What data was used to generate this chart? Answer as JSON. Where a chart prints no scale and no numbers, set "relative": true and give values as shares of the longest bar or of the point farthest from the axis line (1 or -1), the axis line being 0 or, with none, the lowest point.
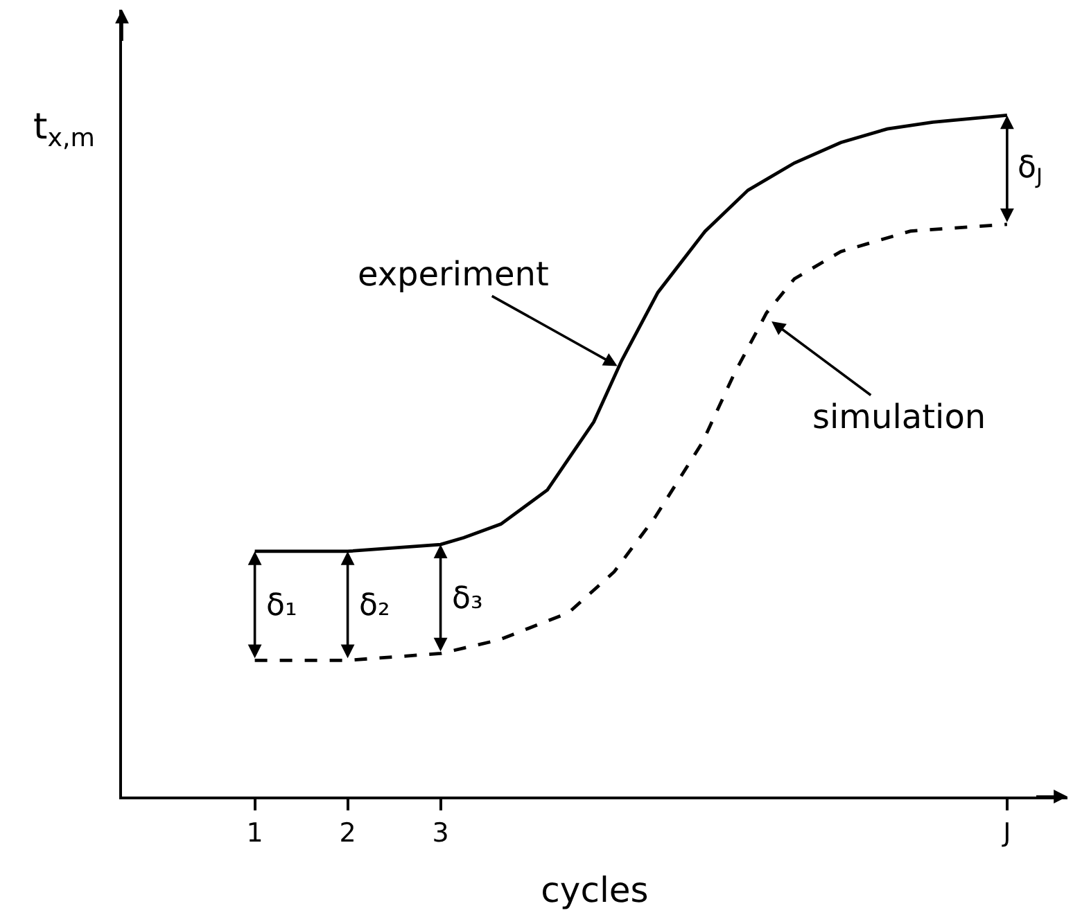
{
  "chart_data": {
    "type": "line",
    "relative": true,
    "xlabel": "cycles",
    "ylabel": "t$_{x,m}$",
    "xlim": [
      -0.43,
      9.75
    ],
    "xticks": [
      1,
      2,
      3,
      {
        "value": 9.1,
        "label": "J"
      }
    ],
    "series": [
      {
        "color": "#000000",
        "line_style": "solid",
        "x": [
          1,
          2,
          3,
          3.25,
          3.65,
          4.15,
          4.4,
          4.65,
          4.95,
          5.34,
          5.85,
          6.31,
          6.81,
          7.31,
          7.81,
          8.3,
          9.1
        ],
        "values": [
          0.36,
          0.36,
          0.37,
          0.38,
          0.4,
          0.45,
          0.5,
          0.55,
          0.64,
          0.74,
          0.83,
          0.89,
          0.93,
          0.96,
          0.98,
          0.99,
          1.0
        ]
      },
      {
        "color": "#000000",
        "line_style": "dashed",
        "x": [
          1,
          2,
          3,
          3.63,
          4.38,
          4.87,
          5.31,
          5.82,
          6.16,
          6.51,
          6.81,
          7.31,
          8.06,
          9.1
        ],
        "values": [
          0.2,
          0.2,
          0.21,
          0.23,
          0.27,
          0.33,
          0.41,
          0.52,
          0.62,
          0.71,
          0.76,
          0.8,
          0.83,
          0.84
        ]
      }
    ],
    "annotations": [
      {
        "text": "experiment",
        "x": 4.93,
        "y": 0.63
      },
      {
        "text": "simulation",
        "x": 6.54,
        "y": 0.7
      },
      {
        "text": "δ₁",
        "x": 1,
        "y": 0.36
      },
      {
        "text": "δ₂",
        "x": 2,
        "y": 0.36
      },
      {
        "text": "δ₃",
        "x": 3,
        "y": 0.37
      },
      {
        "text": "δ$_{J}$",
        "x": 9.1,
        "y": 1.0
      }
    ]
  }
}
